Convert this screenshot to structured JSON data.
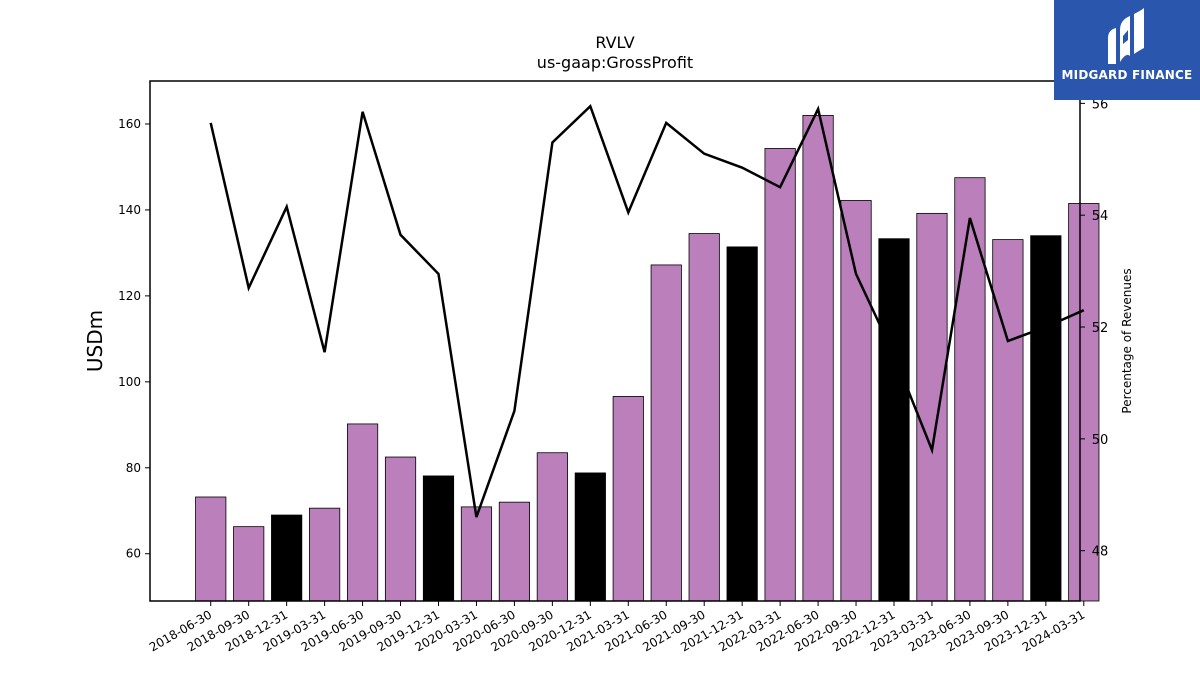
{
  "chart_data": {
    "type": "bar",
    "title": "RVLV",
    "subtitle": "us-gaap:GrossProfit",
    "ylabel": "USDm",
    "ylabel_right": "Percentage of Revenues",
    "ylim": [
      49,
      170
    ],
    "ylim_right": [
      47.1,
      56.4
    ],
    "yticks": [
      60,
      80,
      100,
      120,
      140,
      160
    ],
    "yticks_right": [
      48,
      50,
      52,
      54,
      56
    ],
    "categories": [
      "2018-06-30",
      "2018-09-30",
      "2018-12-31",
      "2019-03-31",
      "2019-06-30",
      "2019-09-30",
      "2019-12-31",
      "2020-03-31",
      "2020-06-30",
      "2020-09-30",
      "2020-12-31",
      "2021-03-31",
      "2021-06-30",
      "2021-09-30",
      "2021-12-31",
      "2022-03-31",
      "2022-06-30",
      "2022-09-30",
      "2022-12-31",
      "2023-03-31",
      "2023-06-30",
      "2023-09-30",
      "2023-12-31",
      "2024-03-31"
    ],
    "series": [
      {
        "type": "bar",
        "axis": "left",
        "values": [
          73.2,
          66.3,
          69.0,
          70.6,
          90.2,
          82.5,
          78.1,
          70.9,
          72.0,
          83.5,
          78.8,
          96.6,
          127.2,
          134.5,
          131.4,
          154.3,
          162.0,
          142.2,
          133.3,
          139.2,
          147.5,
          133.1,
          134.0,
          141.5
        ],
        "colors": [
          "#bb7fbc",
          "#bb7fbc",
          "#000000",
          "#bb7fbc",
          "#bb7fbc",
          "#bb7fbc",
          "#000000",
          "#bb7fbc",
          "#bb7fbc",
          "#bb7fbc",
          "#000000",
          "#bb7fbc",
          "#bb7fbc",
          "#bb7fbc",
          "#000000",
          "#bb7fbc",
          "#bb7fbc",
          "#bb7fbc",
          "#000000",
          "#bb7fbc",
          "#bb7fbc",
          "#bb7fbc",
          "#000000",
          "#bb7fbc"
        ]
      },
      {
        "type": "line",
        "axis": "right",
        "color": "#000000",
        "values": [
          55.65,
          52.7,
          54.15,
          51.55,
          55.85,
          53.65,
          52.95,
          48.6,
          50.5,
          55.3,
          55.95,
          54.05,
          55.65,
          55.1,
          54.85,
          54.5,
          55.9,
          52.95,
          51.5,
          49.8,
          53.95,
          51.75,
          52.0,
          52.3
        ]
      }
    ],
    "grid": false,
    "legend": "none"
  },
  "logo": {
    "text": "MIDGARD FINANCE",
    "bg_color": "#2a56ae"
  }
}
